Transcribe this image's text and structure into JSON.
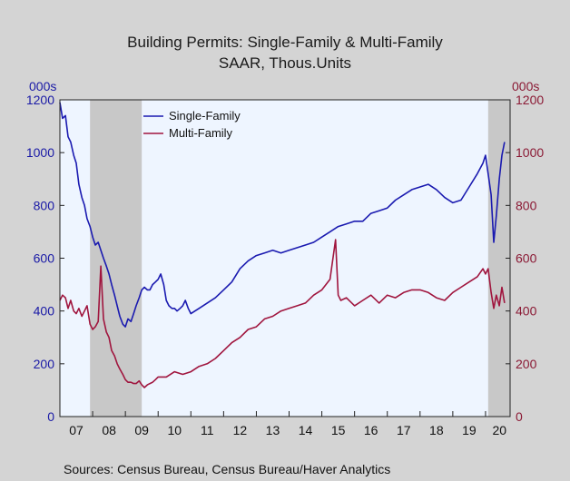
{
  "colors": {
    "background": "#d4d4d4",
    "plot_background": "#eef5ff",
    "recession_band": "#c8c8c8",
    "single_family": "#1a1ab0",
    "multi_family": "#a0153e",
    "left_axis": "#1a1aa6",
    "right_axis": "#8b1a35"
  },
  "chart_data": {
    "type": "line",
    "title": "Building Permits: Single-Family & Multi-Family",
    "subtitle": "SAAR, Thous.Units",
    "ylabel_left": "000s",
    "ylabel_right": "000s",
    "ylim": [
      0,
      1200
    ],
    "yticks": [
      "0",
      "200",
      "400",
      "600",
      "800",
      "1000",
      "1200"
    ],
    "xlim": [
      2007.0,
      2020.75
    ],
    "xticks": [
      "07",
      "08",
      "09",
      "10",
      "11",
      "12",
      "13",
      "14",
      "15",
      "16",
      "17",
      "18",
      "19",
      "20"
    ],
    "recessions": [
      [
        2007.92,
        2009.5
      ],
      [
        2020.08,
        2020.75
      ]
    ],
    "legend_position": "top-left",
    "source": "Sources:   Census Bureau, Census Bureau/Haver Analytics",
    "series": [
      {
        "name": "Single-Family",
        "color": "#1a1ab0",
        "x": [
          2007.0,
          2007.08,
          2007.17,
          2007.25,
          2007.33,
          2007.42,
          2007.5,
          2007.58,
          2007.67,
          2007.75,
          2007.83,
          2007.92,
          2008.0,
          2008.08,
          2008.17,
          2008.25,
          2008.33,
          2008.42,
          2008.5,
          2008.58,
          2008.67,
          2008.75,
          2008.83,
          2008.92,
          2009.0,
          2009.08,
          2009.17,
          2009.25,
          2009.33,
          2009.42,
          2009.5,
          2009.58,
          2009.67,
          2009.75,
          2009.83,
          2009.92,
          2010.0,
          2010.08,
          2010.17,
          2010.25,
          2010.33,
          2010.42,
          2010.5,
          2010.58,
          2010.67,
          2010.75,
          2010.83,
          2010.92,
          2011.0,
          2011.25,
          2011.5,
          2011.75,
          2012.0,
          2012.25,
          2012.5,
          2012.75,
          2013.0,
          2013.25,
          2013.5,
          2013.75,
          2014.0,
          2014.25,
          2014.5,
          2014.75,
          2015.0,
          2015.25,
          2015.5,
          2015.75,
          2016.0,
          2016.25,
          2016.5,
          2016.75,
          2017.0,
          2017.25,
          2017.5,
          2017.75,
          2018.0,
          2018.25,
          2018.5,
          2018.75,
          2019.0,
          2019.25,
          2019.5,
          2019.75,
          2019.92,
          2020.0,
          2020.08,
          2020.17,
          2020.25,
          2020.33,
          2020.42,
          2020.5,
          2020.58
        ],
        "values": [
          1190,
          1130,
          1140,
          1060,
          1040,
          990,
          960,
          880,
          830,
          800,
          750,
          720,
          680,
          650,
          660,
          630,
          600,
          570,
          540,
          500,
          460,
          420,
          380,
          350,
          340,
          370,
          360,
          390,
          420,
          450,
          480,
          490,
          480,
          480,
          500,
          510,
          520,
          540,
          500,
          440,
          420,
          410,
          410,
          400,
          410,
          420,
          440,
          410,
          390,
          410,
          430,
          450,
          480,
          510,
          560,
          590,
          610,
          620,
          630,
          620,
          630,
          640,
          650,
          660,
          680,
          700,
          720,
          730,
          740,
          740,
          770,
          780,
          790,
          820,
          840,
          860,
          870,
          880,
          860,
          830,
          810,
          820,
          870,
          920,
          960,
          990,
          920,
          840,
          660,
          760,
          900,
          990,
          1040
        ]
      },
      {
        "name": "Multi-Family",
        "color": "#a0153e",
        "x": [
          2007.0,
          2007.08,
          2007.17,
          2007.25,
          2007.33,
          2007.42,
          2007.5,
          2007.58,
          2007.67,
          2007.75,
          2007.83,
          2007.92,
          2008.0,
          2008.08,
          2008.17,
          2008.25,
          2008.33,
          2008.42,
          2008.5,
          2008.58,
          2008.67,
          2008.75,
          2008.83,
          2008.92,
          2009.0,
          2009.08,
          2009.17,
          2009.25,
          2009.33,
          2009.42,
          2009.5,
          2009.58,
          2009.67,
          2009.75,
          2009.83,
          2009.92,
          2010.0,
          2010.25,
          2010.5,
          2010.75,
          2011.0,
          2011.25,
          2011.5,
          2011.75,
          2012.0,
          2012.25,
          2012.5,
          2012.75,
          2013.0,
          2013.25,
          2013.5,
          2013.75,
          2014.0,
          2014.25,
          2014.5,
          2014.75,
          2015.0,
          2015.25,
          2015.42,
          2015.5,
          2015.58,
          2015.75,
          2016.0,
          2016.25,
          2016.5,
          2016.75,
          2017.0,
          2017.25,
          2017.5,
          2017.75,
          2018.0,
          2018.25,
          2018.5,
          2018.75,
          2019.0,
          2019.25,
          2019.5,
          2019.75,
          2019.92,
          2020.0,
          2020.08,
          2020.17,
          2020.25,
          2020.33,
          2020.42,
          2020.5,
          2020.58
        ],
        "values": [
          440,
          460,
          450,
          410,
          440,
          400,
          390,
          410,
          380,
          400,
          420,
          350,
          330,
          340,
          360,
          570,
          370,
          320,
          300,
          250,
          230,
          200,
          180,
          160,
          140,
          130,
          130,
          125,
          125,
          135,
          120,
          110,
          120,
          125,
          130,
          140,
          150,
          150,
          170,
          160,
          170,
          190,
          200,
          220,
          250,
          280,
          300,
          330,
          340,
          370,
          380,
          400,
          410,
          420,
          430,
          460,
          480,
          520,
          670,
          460,
          440,
          450,
          420,
          440,
          460,
          430,
          460,
          450,
          470,
          480,
          480,
          470,
          450,
          440,
          470,
          490,
          510,
          530,
          560,
          540,
          560,
          470,
          410,
          460,
          420,
          490,
          430
        ]
      }
    ]
  }
}
